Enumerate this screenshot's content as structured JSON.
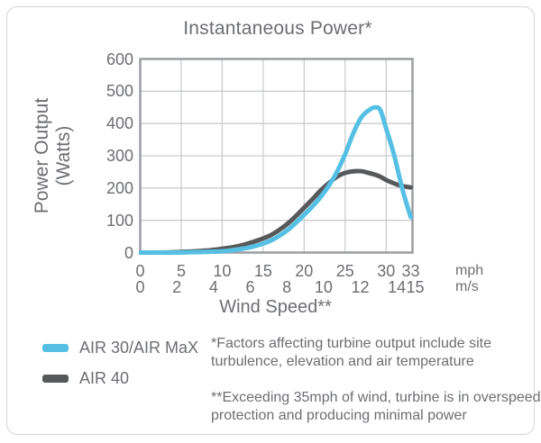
{
  "card": {
    "title": "Instantaneous Power*"
  },
  "chart_data": {
    "type": "line",
    "title": "Instantaneous Power*",
    "xlabel": "Wind Speed**",
    "ylabel": "Power Output (Watts)",
    "ylabel_lines": [
      "Power Output",
      "(Watts)"
    ],
    "xlim_mph": [
      0,
      33
    ],
    "ylim": [
      0,
      600
    ],
    "grid": true,
    "y_ticks": [
      0,
      100,
      200,
      300,
      400,
      500,
      600
    ],
    "x_ticks_mph": [
      0,
      5,
      10,
      15,
      20,
      25,
      30,
      33
    ],
    "x_ticks_ms": [
      0,
      2,
      4,
      6,
      8,
      10,
      12,
      14,
      15
    ],
    "x_unit_primary": "mph",
    "x_unit_secondary": "m/s",
    "x_mph": [
      0,
      2,
      4,
      6,
      8,
      10,
      12,
      14,
      16,
      18,
      20,
      21,
      22,
      23,
      24,
      25,
      26,
      27,
      28,
      28.7,
      29.3,
      30,
      31,
      32,
      33
    ],
    "series": [
      {
        "name": "AIR 30/AIR MaX",
        "color": "#55c0e4",
        "values": [
          0,
          0,
          0,
          1,
          2,
          4,
          10,
          20,
          38,
          70,
          117,
          143,
          172,
          207,
          250,
          305,
          370,
          420,
          443,
          450,
          441,
          385,
          300,
          195,
          110
        ]
      },
      {
        "name": "AIR 40",
        "color": "#57585a",
        "values": [
          0,
          0,
          1,
          3,
          6,
          12,
          20,
          35,
          55,
          90,
          139,
          165,
          192,
          215,
          235,
          247,
          252,
          252,
          246,
          241,
          235,
          225,
          214,
          206,
          202
        ]
      }
    ],
    "legend_position": "bottom-left"
  },
  "legend": {
    "items": [
      {
        "label": "AIR 30/AIR MaX",
        "color": "#55c0e4"
      },
      {
        "label": "AIR 40",
        "color": "#57585a"
      }
    ]
  },
  "footnotes": [
    {
      "lines": [
        "*Factors affecting turbine output include site",
        "turbulence, elevation and air temperature"
      ]
    },
    {
      "lines": [
        "**Exceeding 35mph of wind, turbine is in overspeed",
        "protection and producing minimal power"
      ]
    }
  ],
  "colors": {
    "text": "#6d6e71",
    "grid_line": "#cbccce",
    "plot_border": "#9b9da0",
    "card_border": "#d4d5d6",
    "series_air30": "#55c0e4",
    "series_air40": "#57585a"
  }
}
